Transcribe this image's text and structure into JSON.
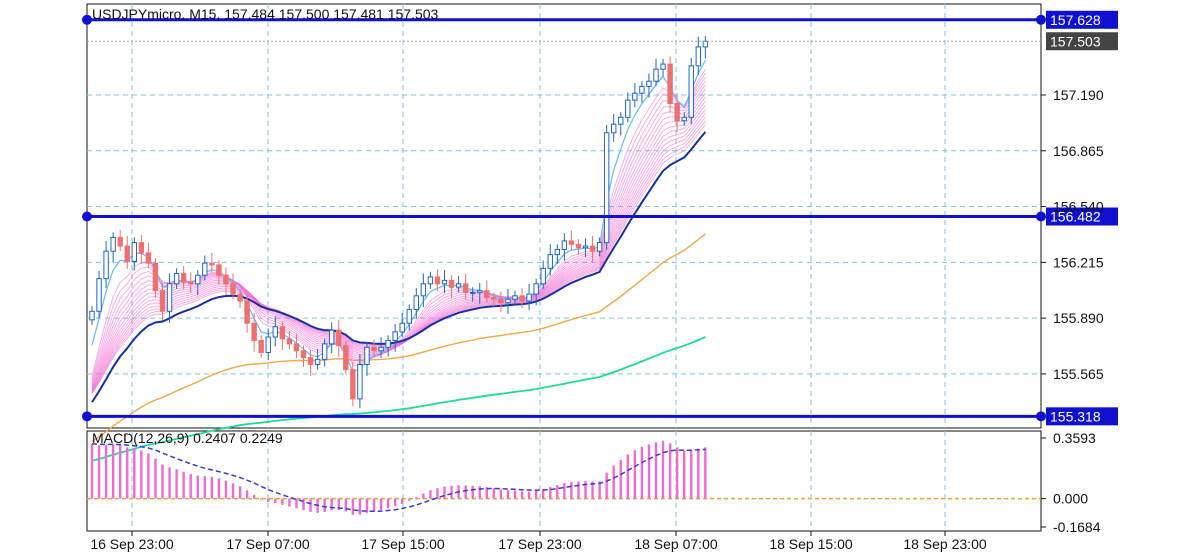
{
  "chart_data": {
    "type": "candlestick",
    "symbol_label": "USDJPYmicro, M15, 157.484 157.500 157.481 157.503",
    "timeframe": "M15",
    "price_axis": {
      "ylim": [
        155.25,
        157.72
      ],
      "ticks": [
        {
          "value": 157.19,
          "label": "157.190"
        },
        {
          "value": 156.865,
          "label": "156.865"
        },
        {
          "value": 156.54,
          "label": "156.540"
        },
        {
          "value": 156.215,
          "label": "156.215"
        },
        {
          "value": 155.89,
          "label": "155.890"
        },
        {
          "value": 155.565,
          "label": "155.565"
        }
      ]
    },
    "horizontal_lines": [
      {
        "value": 157.628,
        "label": "157.628",
        "color": "#1010d0"
      },
      {
        "value": 156.482,
        "label": "156.482",
        "color": "#1010d0"
      },
      {
        "value": 155.318,
        "label": "155.318",
        "color": "#1010d0"
      }
    ],
    "current_price": {
      "value": 157.503,
      "label": "157.503"
    },
    "time_axis": {
      "labels": [
        "16 Sep 23:00",
        "17 Sep 07:00",
        "17 Sep 15:00",
        "17 Sep 23:00",
        "18 Sep 07:00",
        "18 Sep 15:00",
        "18 Sep 23:00"
      ]
    },
    "grid": true,
    "candle_colors": {
      "up": "#1f66c6",
      "down": "#f07070"
    },
    "ma_colors": {
      "ribbon": "#f06ad0",
      "fast": "#1a2fa0",
      "mid": "#f0a848",
      "slow": "#22d898"
    },
    "close_series": [
      155.93,
      156.12,
      156.28,
      156.36,
      156.31,
      156.22,
      156.33,
      156.27,
      156.21,
      156.05,
      155.93,
      156.09,
      156.15,
      156.1,
      156.09,
      156.14,
      156.21,
      156.2,
      156.14,
      156.09,
      156.03,
      155.99,
      155.86,
      155.76,
      155.69,
      155.78,
      155.84,
      155.77,
      155.74,
      155.7,
      155.66,
      155.62,
      155.65,
      155.74,
      155.82,
      155.73,
      155.59,
      155.42,
      155.62,
      155.72,
      155.7,
      155.72,
      155.76,
      155.81,
      155.86,
      155.94,
      156.02,
      156.09,
      156.13,
      156.09,
      156.11,
      156.07,
      156.09,
      156.04,
      156.04,
      156.05,
      156.01,
      156.0,
      155.98,
      156.0,
      156.02,
      155.99,
      156.03,
      156.09,
      156.18,
      156.26,
      156.29,
      156.34,
      156.32,
      156.3,
      156.31,
      156.28,
      156.33,
      156.97,
      157.02,
      157.06,
      157.16,
      157.2,
      157.24,
      157.27,
      157.34,
      157.37,
      157.14,
      157.04,
      157.06,
      157.36,
      157.47,
      157.503
    ],
    "indicator": {
      "name": "MACD",
      "label": "MACD(12,26,9) 0.2407 0.2249",
      "main_value": 0.2407,
      "signal_value": 0.2249,
      "ylim": [
        -0.1684,
        0.3593
      ],
      "ticks": [
        {
          "value": 0.3593,
          "label": "0.3593"
        },
        {
          "value": 0.0,
          "label": "0.000"
        },
        {
          "value": -0.1684,
          "label": "-0.1684"
        }
      ],
      "histogram_color": "#f06ad0",
      "signal_color": "#3a3ad8",
      "zero_line_color": "#f0a030"
    }
  }
}
